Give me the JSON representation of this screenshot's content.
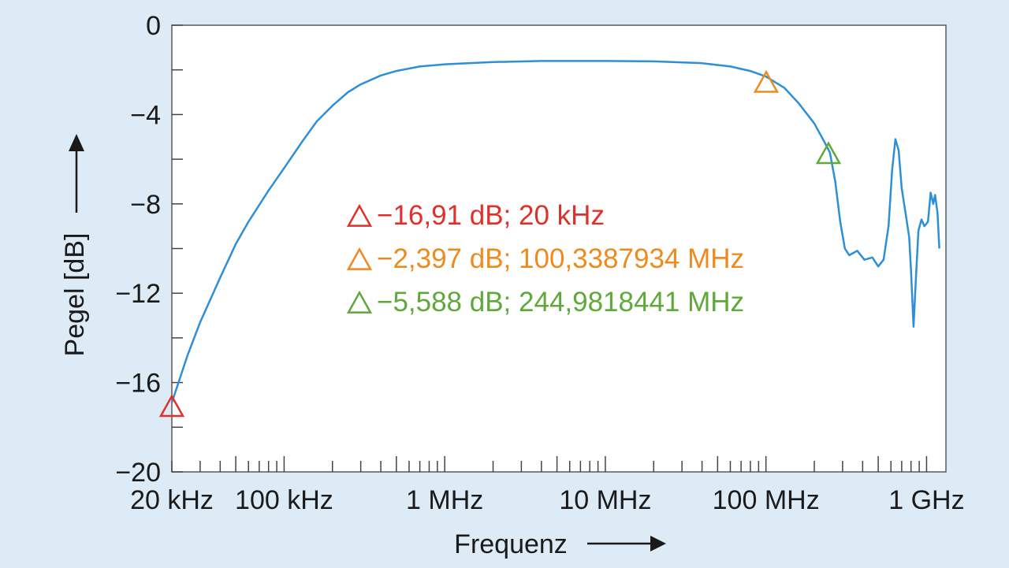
{
  "chart_data": {
    "type": "line",
    "title": "",
    "xlabel": "Frequenz",
    "ylabel": "Pegel [dB]",
    "x_scale": "log",
    "x_unit": "Hz",
    "xlim": [
      20000,
      1320000000
    ],
    "ylim": [
      -20,
      0
    ],
    "y_ticks": [
      0,
      -4,
      -8,
      -12,
      -16,
      -20
    ],
    "y_tick_labels": [
      "0",
      "−4",
      "−8",
      "−12",
      "−16",
      "−20"
    ],
    "x_tick_labels": [
      {
        "x": 20000,
        "label": "20 kHz"
      },
      {
        "x": 100000,
        "label": "100 kHz"
      },
      {
        "x": 1000000,
        "label": "1 MHz"
      },
      {
        "x": 10000000,
        "label": "10 MHz"
      },
      {
        "x": 100000000,
        "label": "100 MHz"
      },
      {
        "x": 1000000000,
        "label": "1 GHz"
      }
    ],
    "series": [
      {
        "color": "#2e8fd6",
        "points": [
          [
            20000,
            -16.9
          ],
          [
            25000,
            -14.8
          ],
          [
            30000,
            -13.3
          ],
          [
            40000,
            -11.3
          ],
          [
            50000,
            -9.8
          ],
          [
            60000,
            -8.8
          ],
          [
            80000,
            -7.4
          ],
          [
            100000,
            -6.4
          ],
          [
            130000,
            -5.2
          ],
          [
            160000,
            -4.3
          ],
          [
            200000,
            -3.6
          ],
          [
            250000,
            -3.0
          ],
          [
            300000,
            -2.65
          ],
          [
            400000,
            -2.25
          ],
          [
            500000,
            -2.05
          ],
          [
            700000,
            -1.85
          ],
          [
            1000000,
            -1.75
          ],
          [
            2000000,
            -1.65
          ],
          [
            4000000,
            -1.6
          ],
          [
            10000000,
            -1.6
          ],
          [
            20000000,
            -1.62
          ],
          [
            40000000,
            -1.7
          ],
          [
            60000000,
            -1.85
          ],
          [
            80000000,
            -2.05
          ],
          [
            100000000,
            -2.3
          ],
          [
            130000000,
            -2.8
          ],
          [
            160000000,
            -3.5
          ],
          [
            200000000,
            -4.4
          ],
          [
            230000000,
            -5.2
          ],
          [
            250000000,
            -5.7
          ],
          [
            270000000,
            -7.0
          ],
          [
            290000000,
            -8.8
          ],
          [
            310000000,
            -10.0
          ],
          [
            330000000,
            -10.3
          ],
          [
            370000000,
            -10.1
          ],
          [
            410000000,
            -10.5
          ],
          [
            460000000,
            -10.4
          ],
          [
            500000000,
            -10.8
          ],
          [
            540000000,
            -10.5
          ],
          [
            580000000,
            -9.0
          ],
          [
            610000000,
            -6.5
          ],
          [
            640000000,
            -5.1
          ],
          [
            670000000,
            -5.6
          ],
          [
            700000000,
            -7.3
          ],
          [
            750000000,
            -8.7
          ],
          [
            780000000,
            -9.5
          ],
          [
            800000000,
            -11.0
          ],
          [
            830000000,
            -13.5
          ],
          [
            860000000,
            -11.2
          ],
          [
            890000000,
            -9.2
          ],
          [
            930000000,
            -8.7
          ],
          [
            970000000,
            -9.0
          ],
          [
            1020000000,
            -8.8
          ],
          [
            1060000000,
            -7.5
          ],
          [
            1100000000,
            -8.0
          ],
          [
            1130000000,
            -7.6
          ],
          [
            1170000000,
            -8.4
          ],
          [
            1200000000,
            -10.0
          ]
        ]
      }
    ],
    "markers": [
      {
        "x": 20000,
        "y": -16.91,
        "color": "#e0302a",
        "label": "−16,91 dB; 20 kHz"
      },
      {
        "x": 100338793.4,
        "y": -2.397,
        "color": "#ef8a1e",
        "label": "−2,397 dB; 100,3387934 MHz"
      },
      {
        "x": 244981844.1,
        "y": -5.588,
        "color": "#5fa83a",
        "label": "−5,588 dB; 244,9818441 MHz"
      }
    ],
    "marker_symbol": "△",
    "grid": false
  }
}
